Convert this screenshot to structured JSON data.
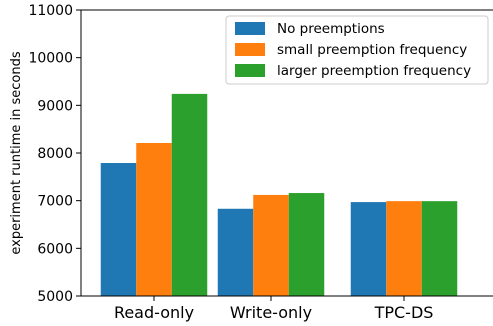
{
  "chart_data": {
    "type": "bar",
    "title": "",
    "xlabel": "",
    "ylabel": "experiment runtime in seconds",
    "ylim": [
      5000,
      11000
    ],
    "yticks": [
      5000,
      6000,
      7000,
      8000,
      9000,
      10000,
      11000
    ],
    "categories": [
      "Read-only",
      "Write-only",
      "TPC-DS"
    ],
    "series": [
      {
        "name": "No preemptions",
        "color": "#1f77b4",
        "values": [
          7790,
          6830,
          6970
        ]
      },
      {
        "name": "small preemption frequency",
        "color": "#ff7f0e",
        "values": [
          8210,
          7120,
          6990
        ]
      },
      {
        "name": "larger preemption frequency",
        "color": "#2ca02c",
        "values": [
          9240,
          7160,
          6990
        ]
      }
    ],
    "legend_position": "top-right",
    "grid": false
  }
}
